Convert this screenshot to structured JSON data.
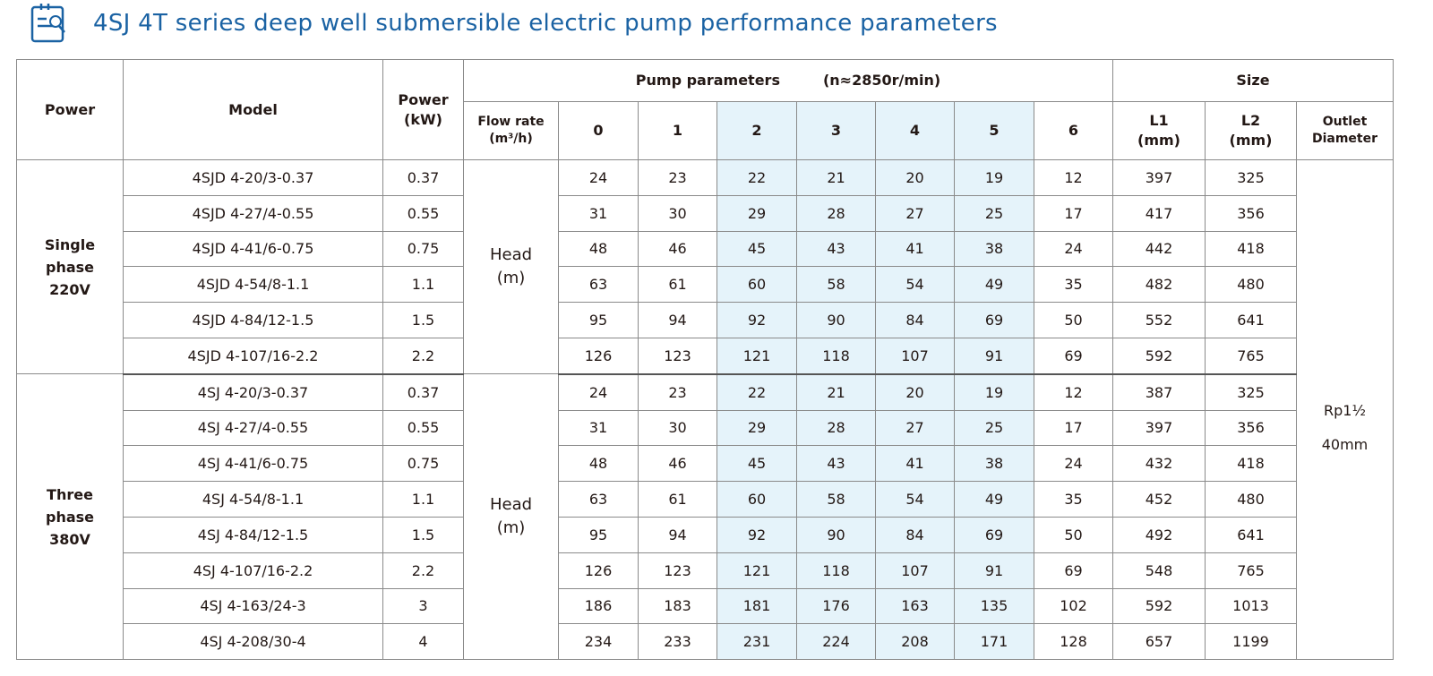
{
  "title": "4SJ 4T series deep well submersible electric pump performance parameters",
  "title_icon": "document-search-icon",
  "colors": {
    "title": "#1a62a3",
    "highlight": "#e5f3fa",
    "border": "#8a8a8a"
  },
  "headers": {
    "power": "Power",
    "model": "Model",
    "power_kw": [
      "Power",
      "(kW)"
    ],
    "pump_parameters": "Pump parameters",
    "speed": "(n≈2850r/min)",
    "flow_rate": [
      "Flow rate",
      "(m³/h)"
    ],
    "flow_points": [
      "0",
      "1",
      "2",
      "3",
      "4",
      "5",
      "6"
    ],
    "size": "Size",
    "l1": [
      "L1",
      "(mm)"
    ],
    "l2": [
      "L2",
      "(mm)"
    ],
    "outlet": [
      "Outlet",
      "Diameter"
    ]
  },
  "head_label": [
    "Head",
    "(m)"
  ],
  "outlet_value": [
    "Rp1½",
    "40mm"
  ],
  "groups": [
    {
      "label": [
        "Single",
        "phase",
        "220V"
      ],
      "rows": [
        {
          "model": "4SJD 4-20/3-0.37",
          "kw": "0.37",
          "head": [
            "24",
            "23",
            "22",
            "21",
            "20",
            "19",
            "12"
          ],
          "l1": "397",
          "l2": "325"
        },
        {
          "model": "4SJD 4-27/4-0.55",
          "kw": "0.55",
          "head": [
            "31",
            "30",
            "29",
            "28",
            "27",
            "25",
            "17"
          ],
          "l1": "417",
          "l2": "356"
        },
        {
          "model": "4SJD 4-41/6-0.75",
          "kw": "0.75",
          "head": [
            "48",
            "46",
            "45",
            "43",
            "41",
            "38",
            "24"
          ],
          "l1": "442",
          "l2": "418"
        },
        {
          "model": "4SJD 4-54/8-1.1",
          "kw": "1.1",
          "head": [
            "63",
            "61",
            "60",
            "58",
            "54",
            "49",
            "35"
          ],
          "l1": "482",
          "l2": "480"
        },
        {
          "model": "4SJD 4-84/12-1.5",
          "kw": "1.5",
          "head": [
            "95",
            "94",
            "92",
            "90",
            "84",
            "69",
            "50"
          ],
          "l1": "552",
          "l2": "641"
        },
        {
          "model": "4SJD 4-107/16-2.2",
          "kw": "2.2",
          "head": [
            "126",
            "123",
            "121",
            "118",
            "107",
            "91",
            "69"
          ],
          "l1": "592",
          "l2": "765"
        }
      ]
    },
    {
      "label": [
        "Three",
        "phase",
        "380V"
      ],
      "rows": [
        {
          "model": "4SJ 4-20/3-0.37",
          "kw": "0.37",
          "head": [
            "24",
            "23",
            "22",
            "21",
            "20",
            "19",
            "12"
          ],
          "l1": "387",
          "l2": "325"
        },
        {
          "model": "4SJ 4-27/4-0.55",
          "kw": "0.55",
          "head": [
            "31",
            "30",
            "29",
            "28",
            "27",
            "25",
            "17"
          ],
          "l1": "397",
          "l2": "356"
        },
        {
          "model": "4SJ 4-41/6-0.75",
          "kw": "0.75",
          "head": [
            "48",
            "46",
            "45",
            "43",
            "41",
            "38",
            "24"
          ],
          "l1": "432",
          "l2": "418"
        },
        {
          "model": "4SJ 4-54/8-1.1",
          "kw": "1.1",
          "head": [
            "63",
            "61",
            "60",
            "58",
            "54",
            "49",
            "35"
          ],
          "l1": "452",
          "l2": "480"
        },
        {
          "model": "4SJ 4-84/12-1.5",
          "kw": "1.5",
          "head": [
            "95",
            "94",
            "92",
            "90",
            "84",
            "69",
            "50"
          ],
          "l1": "492",
          "l2": "641"
        },
        {
          "model": "4SJ 4-107/16-2.2",
          "kw": "2.2",
          "head": [
            "126",
            "123",
            "121",
            "118",
            "107",
            "91",
            "69"
          ],
          "l1": "548",
          "l2": "765"
        },
        {
          "model": "4SJ 4-163/24-3",
          "kw": "3",
          "head": [
            "186",
            "183",
            "181",
            "176",
            "163",
            "135",
            "102"
          ],
          "l1": "592",
          "l2": "1013"
        },
        {
          "model": "4SJ 4-208/30-4",
          "kw": "4",
          "head": [
            "234",
            "233",
            "231",
            "224",
            "208",
            "171",
            "128"
          ],
          "l1": "657",
          "l2": "1199"
        }
      ]
    }
  ]
}
